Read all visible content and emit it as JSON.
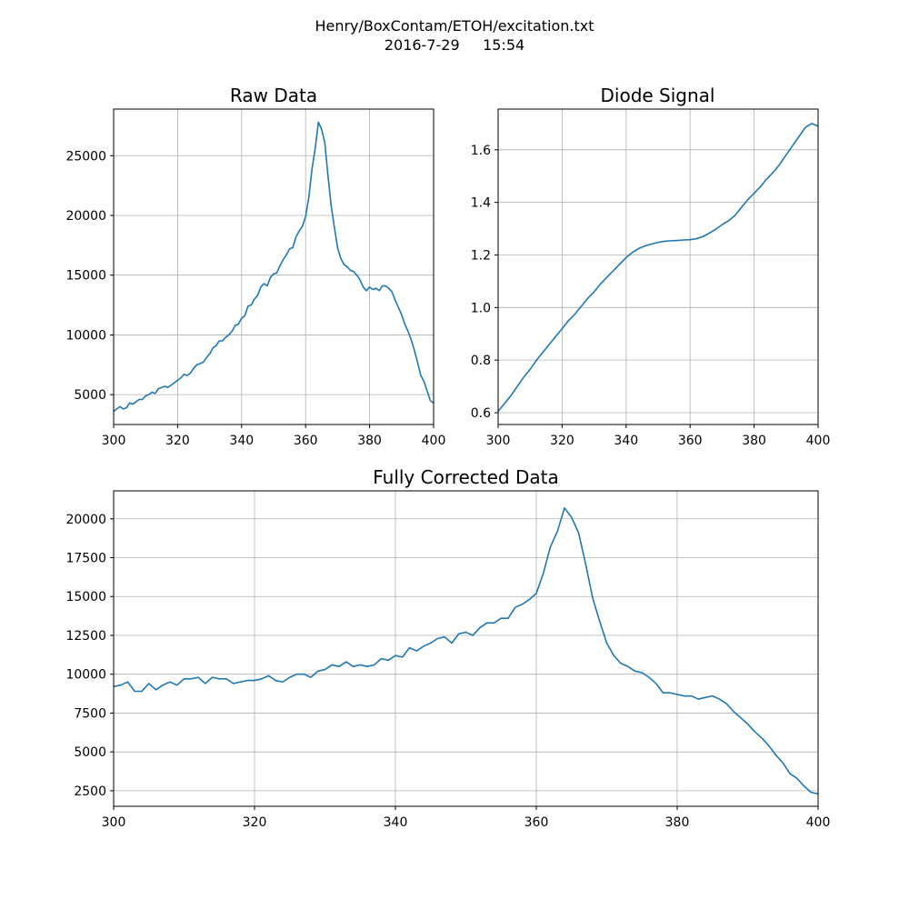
{
  "figure": {
    "suptitle_line1": "Henry/BoxContam/ETOH/excitation.txt",
    "suptitle_line2": "2016-7-29     15:54",
    "line_color": "#1f77b4",
    "grid_color": "#b0b0b0"
  },
  "chart_data": [
    {
      "id": "raw",
      "type": "line",
      "title": "Raw Data",
      "xlabel": "",
      "ylabel": "",
      "xlim": [
        300,
        400
      ],
      "ylim": [
        2500,
        28900
      ],
      "xticks": [
        300,
        320,
        340,
        360,
        380,
        400
      ],
      "yticks": [
        5000,
        10000,
        15000,
        20000,
        25000
      ],
      "grid": true,
      "x": [
        300,
        301,
        302,
        303,
        304,
        305,
        306,
        307,
        308,
        309,
        310,
        311,
        312,
        313,
        314,
        315,
        316,
        317,
        318,
        319,
        320,
        321,
        322,
        323,
        324,
        325,
        326,
        327,
        328,
        329,
        330,
        331,
        332,
        333,
        334,
        335,
        336,
        337,
        338,
        339,
        340,
        341,
        342,
        343,
        344,
        345,
        346,
        347,
        348,
        349,
        350,
        351,
        352,
        353,
        354,
        355,
        356,
        357,
        358,
        359,
        360,
        361,
        362,
        363,
        364,
        365,
        366,
        367,
        368,
        369,
        370,
        371,
        372,
        373,
        374,
        375,
        376,
        377,
        378,
        379,
        380,
        381,
        382,
        383,
        384,
        385,
        386,
        387,
        388,
        389,
        390,
        391,
        392,
        393,
        394,
        395,
        396,
        397,
        398,
        399,
        400
      ],
      "y": [
        3600,
        3800,
        4000,
        3800,
        3900,
        4300,
        4200,
        4400,
        4600,
        4600,
        4900,
        5000,
        5200,
        5100,
        5500,
        5600,
        5700,
        5600,
        5800,
        6000,
        6200,
        6400,
        6700,
        6600,
        6800,
        7200,
        7500,
        7600,
        7700,
        8100,
        8400,
        8900,
        9100,
        9500,
        9500,
        9800,
        10000,
        10300,
        10800,
        10900,
        11400,
        11600,
        12400,
        12500,
        13000,
        13300,
        14000,
        14300,
        14100,
        14800,
        15100,
        15200,
        15800,
        16300,
        16700,
        17200,
        17300,
        18200,
        18700,
        19100,
        19900,
        21500,
        23900,
        25600,
        27800,
        27200,
        26100,
        23300,
        20800,
        19000,
        17300,
        16400,
        15900,
        15700,
        15400,
        15300,
        15000,
        14600,
        14000,
        13700,
        14000,
        13800,
        13900,
        13700,
        14100,
        14100,
        13900,
        13600,
        12900,
        12300,
        11700,
        10900,
        10300,
        9600,
        8700,
        7700,
        6600,
        6100,
        5300,
        4500,
        4300
      ],
      "series": [
        {
          "values_ref": "y"
        }
      ]
    },
    {
      "id": "diode",
      "type": "line",
      "title": "Diode Signal",
      "xlabel": "",
      "ylabel": "",
      "xlim": [
        300,
        400
      ],
      "ylim": [
        0.555,
        1.755
      ],
      "xticks": [
        300,
        320,
        340,
        360,
        380,
        400
      ],
      "yticks": [
        0.6,
        0.8,
        1.0,
        1.2,
        1.4,
        1.6
      ],
      "yticks_labels": [
        "0.6",
        "0.8",
        "1.0",
        "1.2",
        "1.4",
        "1.6"
      ],
      "grid": true,
      "x": [
        300,
        302,
        304,
        306,
        308,
        310,
        312,
        314,
        316,
        318,
        320,
        322,
        324,
        326,
        328,
        330,
        332,
        334,
        336,
        338,
        340,
        342,
        344,
        346,
        348,
        350,
        352,
        354,
        356,
        358,
        360,
        362,
        364,
        366,
        368,
        370,
        372,
        374,
        376,
        378,
        380,
        382,
        384,
        386,
        388,
        390,
        392,
        394,
        396,
        398,
        400
      ],
      "y": [
        0.605,
        0.635,
        0.665,
        0.7,
        0.735,
        0.765,
        0.8,
        0.83,
        0.86,
        0.89,
        0.92,
        0.95,
        0.975,
        1.005,
        1.035,
        1.06,
        1.09,
        1.115,
        1.14,
        1.165,
        1.19,
        1.21,
        1.225,
        1.235,
        1.242,
        1.248,
        1.252,
        1.254,
        1.255,
        1.257,
        1.258,
        1.262,
        1.27,
        1.283,
        1.298,
        1.315,
        1.33,
        1.35,
        1.38,
        1.41,
        1.435,
        1.46,
        1.49,
        1.515,
        1.545,
        1.58,
        1.615,
        1.65,
        1.685,
        1.7,
        1.69
      ]
    },
    {
      "id": "corrected",
      "type": "line",
      "title": "Fully Corrected Data",
      "xlabel": "",
      "ylabel": "",
      "xlim": [
        300,
        400
      ],
      "ylim": [
        1500,
        21800
      ],
      "xticks": [
        300,
        320,
        340,
        360,
        380,
        400
      ],
      "yticks": [
        2500,
        5000,
        7500,
        10000,
        12500,
        15000,
        17500,
        20000
      ],
      "grid": true,
      "x": [
        300,
        301,
        302,
        303,
        304,
        305,
        306,
        307,
        308,
        309,
        310,
        311,
        312,
        313,
        314,
        315,
        316,
        317,
        318,
        319,
        320,
        321,
        322,
        323,
        324,
        325,
        326,
        327,
        328,
        329,
        330,
        331,
        332,
        333,
        334,
        335,
        336,
        337,
        338,
        339,
        340,
        341,
        342,
        343,
        344,
        345,
        346,
        347,
        348,
        349,
        350,
        351,
        352,
        353,
        354,
        355,
        356,
        357,
        358,
        359,
        360,
        361,
        362,
        363,
        364,
        365,
        366,
        367,
        368,
        369,
        370,
        371,
        372,
        373,
        374,
        375,
        376,
        377,
        378,
        379,
        380,
        381,
        382,
        383,
        384,
        385,
        386,
        387,
        388,
        389,
        390,
        391,
        392,
        393,
        394,
        395,
        396,
        397,
        398,
        399,
        400
      ],
      "y": [
        9200,
        9300,
        9500,
        8900,
        8900,
        9400,
        9000,
        9300,
        9500,
        9300,
        9700,
        9700,
        9800,
        9400,
        9800,
        9700,
        9700,
        9400,
        9500,
        9600,
        9600,
        9700,
        9900,
        9600,
        9500,
        9800,
        10000,
        10000,
        9800,
        10200,
        10300,
        10600,
        10500,
        10800,
        10500,
        10600,
        10500,
        10600,
        11000,
        10900,
        11200,
        11100,
        11700,
        11500,
        11800,
        12000,
        12300,
        12400,
        12000,
        12600,
        12700,
        12500,
        13000,
        13300,
        13300,
        13600,
        13600,
        14300,
        14500,
        14800,
        15200,
        16500,
        18200,
        19200,
        20700,
        20100,
        19100,
        17100,
        14900,
        13400,
        12000,
        11200,
        10700,
        10500,
        10200,
        10100,
        9800,
        9400,
        8800,
        8800,
        8700,
        8600,
        8600,
        8400,
        8500,
        8600,
        8400,
        8100,
        7600,
        7200,
        6800,
        6300,
        5900,
        5400,
        4800,
        4300,
        3600,
        3300,
        2800,
        2400,
        2300
      ]
    }
  ]
}
